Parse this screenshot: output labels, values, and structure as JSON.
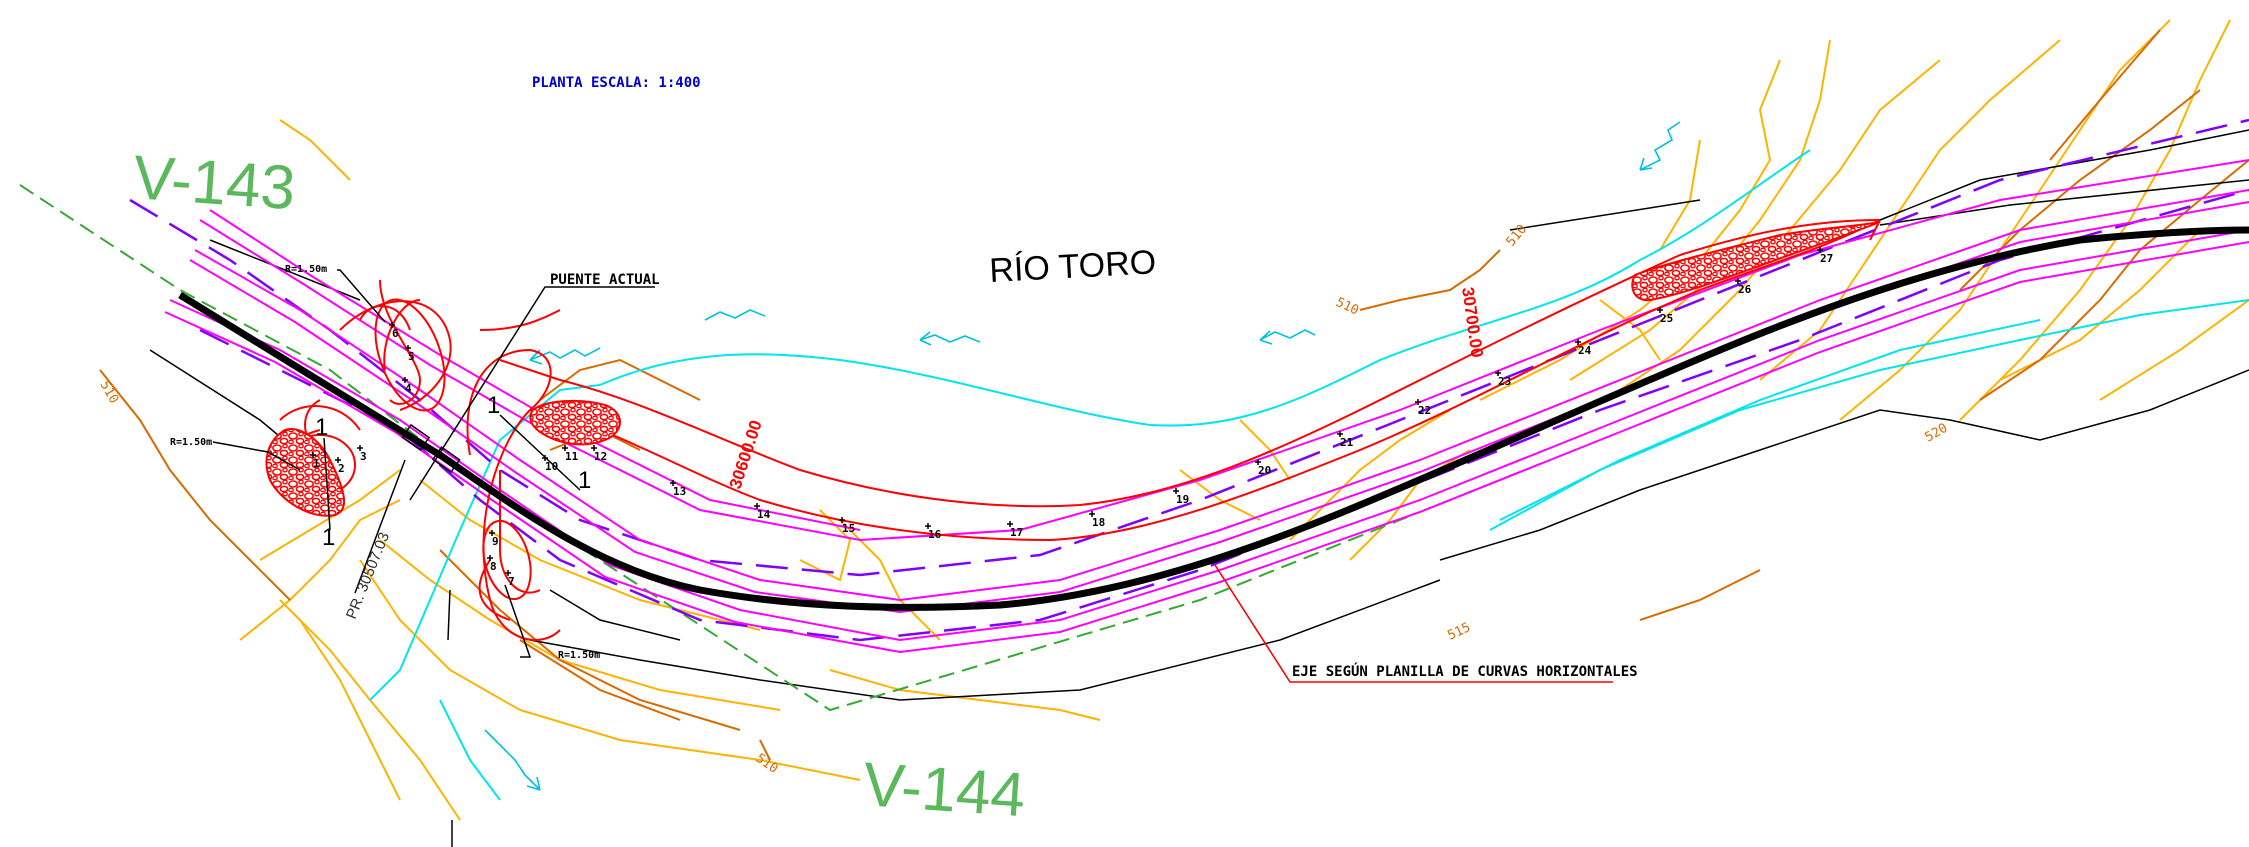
{
  "title": "PLANTA ESCALA: 1:400",
  "labels": {
    "v143": "V-143",
    "v144": "V-144",
    "river": "RÍO TORO",
    "bridge": "PUENTE ACTUAL",
    "axis": "EJE SEGÚN PLANILLA DE CURVAS HORIZONTALES",
    "pr": "PR. 30507.03",
    "km1": "30600.00",
    "km2": "30700.00",
    "r1": "R=1.50m",
    "r2": "R=1.50m",
    "r3": "R=1.50m",
    "sec_a": "1",
    "sec_b": "1",
    "sec_c": "1",
    "sec_d": "1"
  },
  "contours": [
    "510",
    "510",
    "510",
    "515",
    "520"
  ],
  "stations": [
    "1",
    "2",
    "3",
    "4",
    "5",
    "6",
    "7",
    "8",
    "9",
    "10",
    "11",
    "12",
    "13",
    "14",
    "15",
    "16",
    "17",
    "18",
    "19",
    "20",
    "21",
    "22",
    "23",
    "24",
    "25",
    "26",
    "27"
  ],
  "colors": {
    "axis": "#000000",
    "edge": "#ff00ff",
    "dashed": "#8000ff",
    "river": "#00e5ee",
    "riprap": "#ff0000",
    "contour_minor": "#ffb300",
    "contour_major": "#d96a00",
    "grade": "#33aa33",
    "title": "#0000cc"
  }
}
